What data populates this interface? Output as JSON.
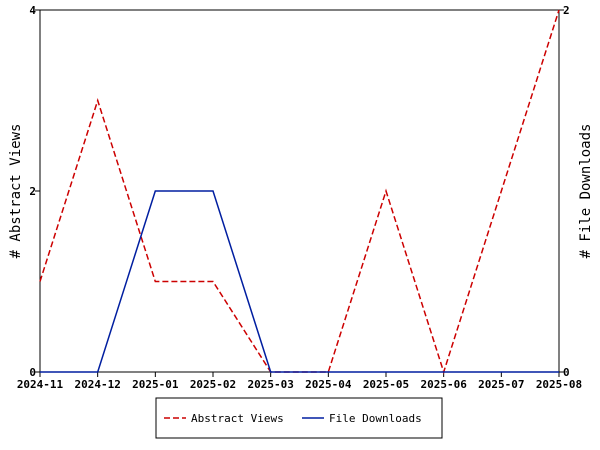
{
  "chart_data": {
    "type": "line",
    "categories": [
      "2024-11",
      "2024-12",
      "2025-01",
      "2025-02",
      "2025-03",
      "2025-04",
      "2025-05",
      "2025-06",
      "2025-07",
      "2025-08"
    ],
    "series": [
      {
        "name": "Abstract Views",
        "axis": "left",
        "color": "#cc0000",
        "dash": "dashed",
        "points": [
          [
            "2024-11",
            1
          ],
          [
            "2024-12",
            3
          ],
          [
            "2025-01",
            1
          ],
          [
            "2025-02",
            1
          ],
          [
            "2025-03",
            0
          ],
          [
            "2025-04",
            0
          ],
          [
            "2025-05",
            2
          ],
          [
            "2025-06",
            0
          ],
          [
            "2025-08",
            4
          ]
        ]
      },
      {
        "name": "File Downloads",
        "axis": "right",
        "color": "#001ea0",
        "dash": "solid",
        "points": [
          [
            "2024-11",
            0
          ],
          [
            "2024-12",
            0
          ],
          [
            "2025-01",
            1
          ],
          [
            "2025-02",
            1
          ],
          [
            "2025-03",
            0
          ],
          [
            "2025-04",
            0
          ],
          [
            "2025-05",
            0
          ],
          [
            "2025-06",
            0
          ],
          [
            "2025-07",
            0
          ],
          [
            "2025-08",
            0
          ]
        ]
      }
    ],
    "ylabel_left": "# Abstract Views",
    "ylabel_right": "# File Downloads",
    "ylim_left": [
      0,
      4
    ],
    "yticks_left": [
      0,
      2,
      4
    ],
    "ylim_right": [
      0,
      2
    ],
    "yticks_right": [
      0,
      2
    ],
    "grid": false,
    "legend_position": "bottom"
  }
}
